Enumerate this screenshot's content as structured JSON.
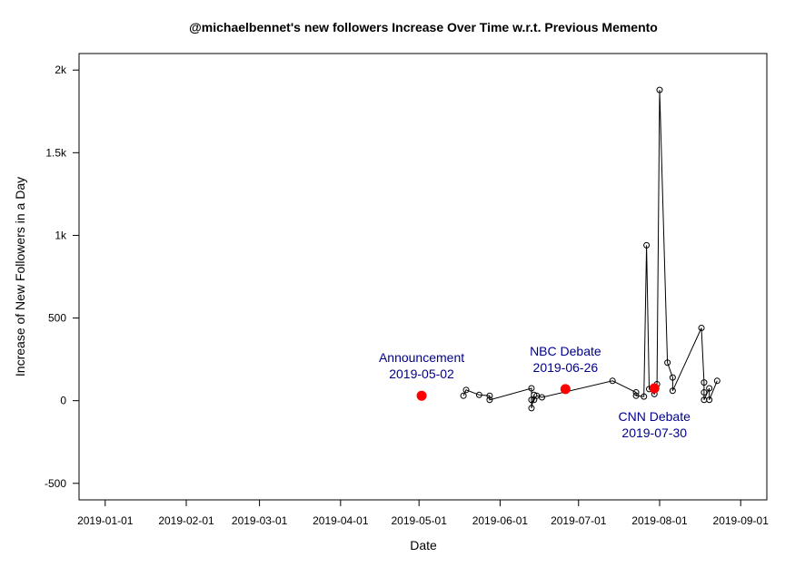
{
  "chart_data": {
    "type": "scatter",
    "title": "@michaelbennet's new followers Increase Over Time w.r.t. Previous Memento",
    "xlabel": "Date",
    "ylabel": "Increase of New Followers in a Day",
    "xlim": [
      "2018-12-22",
      "2019-09-11"
    ],
    "ylim": [
      -600,
      2100
    ],
    "x_ticks": [
      "2019-01-01",
      "2019-02-01",
      "2019-03-01",
      "2019-04-01",
      "2019-05-01",
      "2019-06-01",
      "2019-07-01",
      "2019-08-01",
      "2019-09-01"
    ],
    "y_ticks": [
      -500,
      0,
      500,
      1000,
      1500,
      2000
    ],
    "y_tick_labels": [
      "-500",
      "0",
      "500",
      "1k",
      "1.5k",
      "2k"
    ],
    "grid": false,
    "series": [
      {
        "line": true,
        "color": "#000000",
        "points": [
          {
            "x": "2019-05-18",
            "y": 30
          },
          {
            "x": "2019-05-19",
            "y": 65
          },
          {
            "x": "2019-05-24",
            "y": 35
          },
          {
            "x": "2019-05-28",
            "y": 30
          },
          {
            "x": "2019-05-28",
            "y": 5
          },
          {
            "x": "2019-06-13",
            "y": 75
          },
          {
            "x": "2019-06-13",
            "y": 5
          },
          {
            "x": "2019-06-13",
            "y": -45
          },
          {
            "x": "2019-06-14",
            "y": 35
          },
          {
            "x": "2019-06-14",
            "y": 5
          },
          {
            "x": "2019-06-15",
            "y": 30
          },
          {
            "x": "2019-06-17",
            "y": 20
          },
          {
            "x": "2019-07-14",
            "y": 120
          },
          {
            "x": "2019-07-23",
            "y": 50
          },
          {
            "x": "2019-07-23",
            "y": 30
          },
          {
            "x": "2019-07-26",
            "y": 25
          },
          {
            "x": "2019-07-27",
            "y": 940
          },
          {
            "x": "2019-07-28",
            "y": 70
          },
          {
            "x": "2019-07-30",
            "y": 40
          },
          {
            "x": "2019-07-31",
            "y": 100
          },
          {
            "x": "2019-08-01",
            "y": 1880
          },
          {
            "x": "2019-08-04",
            "y": 230
          },
          {
            "x": "2019-08-06",
            "y": 140
          },
          {
            "x": "2019-08-06",
            "y": 60
          },
          {
            "x": "2019-08-17",
            "y": 440
          },
          {
            "x": "2019-08-18",
            "y": 110
          },
          {
            "x": "2019-08-18",
            "y": 50
          },
          {
            "x": "2019-08-18",
            "y": 5
          },
          {
            "x": "2019-08-20",
            "y": 75
          },
          {
            "x": "2019-08-20",
            "y": 5
          },
          {
            "x": "2019-08-23",
            "y": 120
          }
        ]
      }
    ],
    "events": [
      {
        "x": "2019-05-02",
        "y": 30,
        "label": "Announcement",
        "date_label": "2019-05-02",
        "label_position": "above"
      },
      {
        "x": "2019-06-26",
        "y": 70,
        "label": "NBC Debate",
        "date_label": "2019-06-26",
        "label_position": "above"
      },
      {
        "x": "2019-07-30",
        "y": 75,
        "label": "CNN Debate",
        "date_label": "2019-07-30",
        "label_position": "below"
      }
    ],
    "event_color": "#ff0000",
    "annotation_color": "#00008b"
  }
}
